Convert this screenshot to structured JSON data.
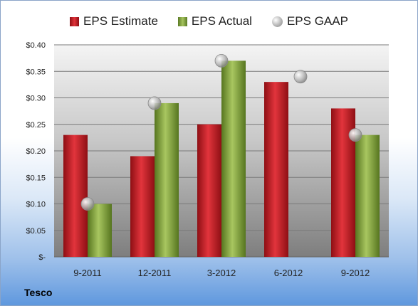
{
  "company": "Tesco",
  "chart_data": {
    "type": "bar",
    "categories": [
      "9-2011",
      "12-2011",
      "3-2012",
      "6-2012",
      "9-2012"
    ],
    "series": [
      {
        "name": "EPS Estimate",
        "kind": "bar",
        "color": "#c0161e",
        "values": [
          0.23,
          0.19,
          0.25,
          0.33,
          0.28
        ]
      },
      {
        "name": "EPS Actual",
        "kind": "bar",
        "color": "#7ea03c",
        "values": [
          0.1,
          0.29,
          0.37,
          null,
          0.23
        ]
      },
      {
        "name": "EPS GAAP",
        "kind": "marker",
        "color": "#b4b4b4",
        "values": [
          0.1,
          0.29,
          0.37,
          0.34,
          0.23
        ]
      }
    ],
    "yticks": [
      "$-",
      "$0.05",
      "$0.10",
      "$0.15",
      "$0.20",
      "$0.25",
      "$0.30",
      "$0.35",
      "$0.40"
    ],
    "ylim": [
      0,
      0.4
    ],
    "grid": true,
    "legend_position": "top"
  }
}
